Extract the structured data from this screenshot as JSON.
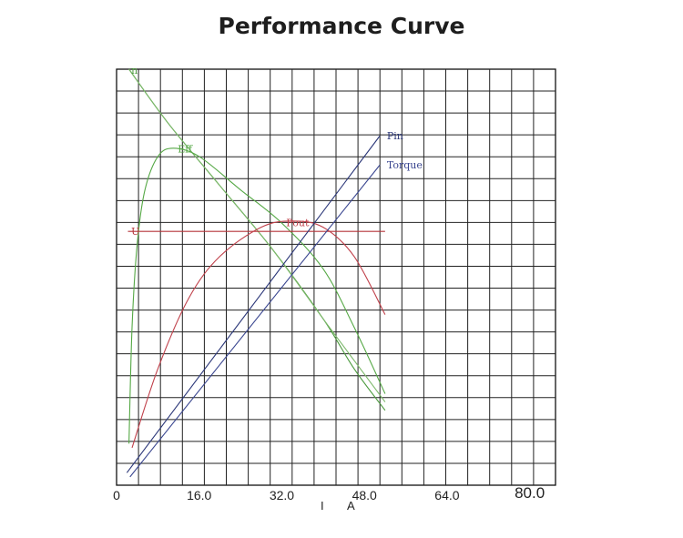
{
  "chart_data": {
    "type": "line",
    "title": "Performance Curve",
    "xlabel": "I A",
    "xlabel_parts": [
      "I",
      "A"
    ],
    "xlim": [
      0,
      85
    ],
    "x_ticks": [
      {
        "value": 0,
        "label": "0"
      },
      {
        "value": 16,
        "label": "16.0"
      },
      {
        "value": 32,
        "label": "32.0"
      },
      {
        "value": 48,
        "label": "48.0"
      },
      {
        "value": 64,
        "label": "64.0"
      },
      {
        "value": 80,
        "label": "80.0"
      }
    ],
    "grid": true,
    "series": [
      {
        "name": "n",
        "color": "#4a9a3c",
        "label_x": 2.5,
        "points": [
          [
            2.4,
            100
          ],
          [
            10,
            87
          ],
          [
            20,
            72
          ],
          [
            30,
            57
          ],
          [
            40,
            40
          ],
          [
            46,
            28
          ],
          [
            52,
            18
          ]
        ]
      },
      {
        "name": "n",
        "color": "#7cb86a",
        "label_x": null,
        "points": [
          [
            2.4,
            100
          ],
          [
            10,
            87
          ],
          [
            20,
            72
          ],
          [
            30,
            57
          ],
          [
            40,
            40
          ],
          [
            46,
            30
          ],
          [
            52,
            20
          ]
        ]
      },
      {
        "name": "Eff",
        "color": "#55a845",
        "label_x": 11.5,
        "points": [
          [
            2.4,
            10
          ],
          [
            3,
            38
          ],
          [
            4,
            58
          ],
          [
            5.5,
            71
          ],
          [
            8,
            79
          ],
          [
            11,
            81
          ],
          [
            16,
            79
          ],
          [
            24,
            71
          ],
          [
            32,
            63
          ],
          [
            40,
            52
          ],
          [
            46,
            38
          ],
          [
            52,
            22
          ]
        ]
      },
      {
        "name": "U",
        "color": "#b5353a",
        "label_x": 2.5,
        "points": [
          [
            2.2,
            61
          ],
          [
            52,
            61
          ]
        ]
      },
      {
        "name": "Pout",
        "color": "#c0404a",
        "label_x": 32.5,
        "points": [
          [
            3,
            9
          ],
          [
            8,
            28
          ],
          [
            14,
            45
          ],
          [
            20,
            55
          ],
          [
            28,
            62
          ],
          [
            34,
            63.5
          ],
          [
            40,
            62
          ],
          [
            46,
            55
          ],
          [
            52,
            41
          ]
        ]
      },
      {
        "name": "Pin",
        "color": "#2a3678",
        "label_x": 52,
        "points": [
          [
            2,
            3
          ],
          [
            51,
            84
          ]
        ]
      },
      {
        "name": "Torque",
        "color": "#3a4690",
        "label_x": 52,
        "points": [
          [
            2.6,
            2
          ],
          [
            51,
            77
          ]
        ]
      }
    ]
  }
}
